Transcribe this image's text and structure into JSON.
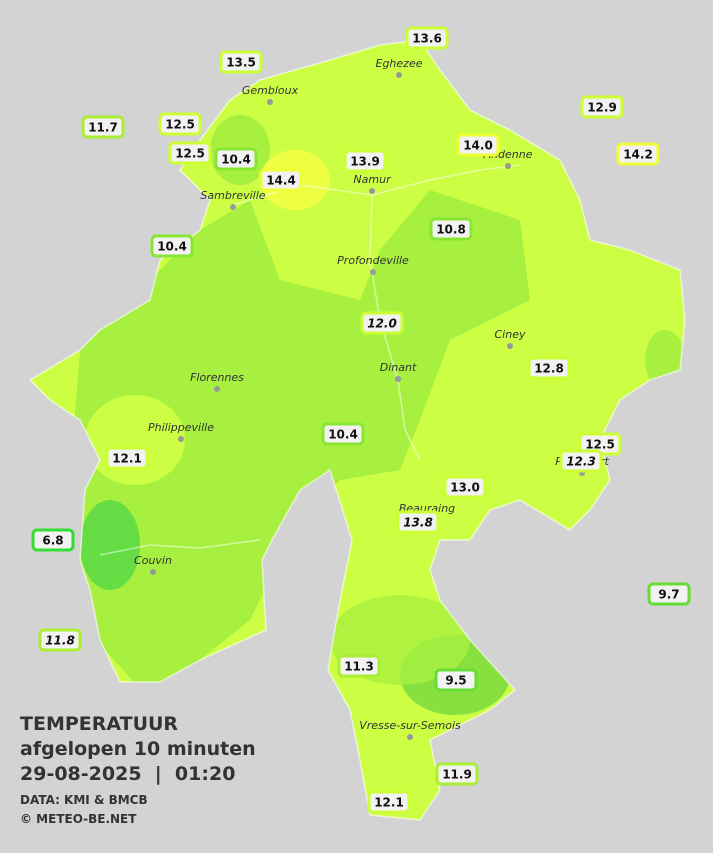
{
  "title": {
    "line1": "TEMPERATUUR",
    "line2": "afgelopen 10 minuten",
    "line3": "29-08-2025  |  01:20",
    "source": "DATA: KMI & BMCB",
    "credit": "© METEO-BE.NET"
  },
  "cities": [
    "Eghezee",
    "Gembloux",
    "Andenne",
    "Namur",
    "Sambreville",
    "Profondeville",
    "Ciney",
    "Dinant",
    "Florennes",
    "Philippeville",
    "Rochefort",
    "Beauraing",
    "Couvin",
    "Vresse-sur-Semois"
  ],
  "stations": [
    {
      "label": "13.6"
    },
    {
      "label": "13.5"
    },
    {
      "label": "12.5"
    },
    {
      "label": "11.7"
    },
    {
      "label": "12.5"
    },
    {
      "label": "10.4"
    },
    {
      "label": "14.4"
    },
    {
      "label": "13.9"
    },
    {
      "label": "14.0"
    },
    {
      "label": "12.9"
    },
    {
      "label": "14.2"
    },
    {
      "label": "10.4"
    },
    {
      "label": "10.8"
    },
    {
      "label": "12.0",
      "italic": true
    },
    {
      "label": "12.8"
    },
    {
      "label": "12.5"
    },
    {
      "label": "12.3",
      "italic": true
    },
    {
      "label": "10.4"
    },
    {
      "label": "12.1"
    },
    {
      "label": "13.0"
    },
    {
      "label": "13.8",
      "italic": true
    },
    {
      "label": "6.8"
    },
    {
      "label": "11.8",
      "italic": true
    },
    {
      "label": "9.7"
    },
    {
      "label": "11.3"
    },
    {
      "label": "9.5"
    },
    {
      "label": "11.9"
    },
    {
      "label": "12.1"
    }
  ]
}
